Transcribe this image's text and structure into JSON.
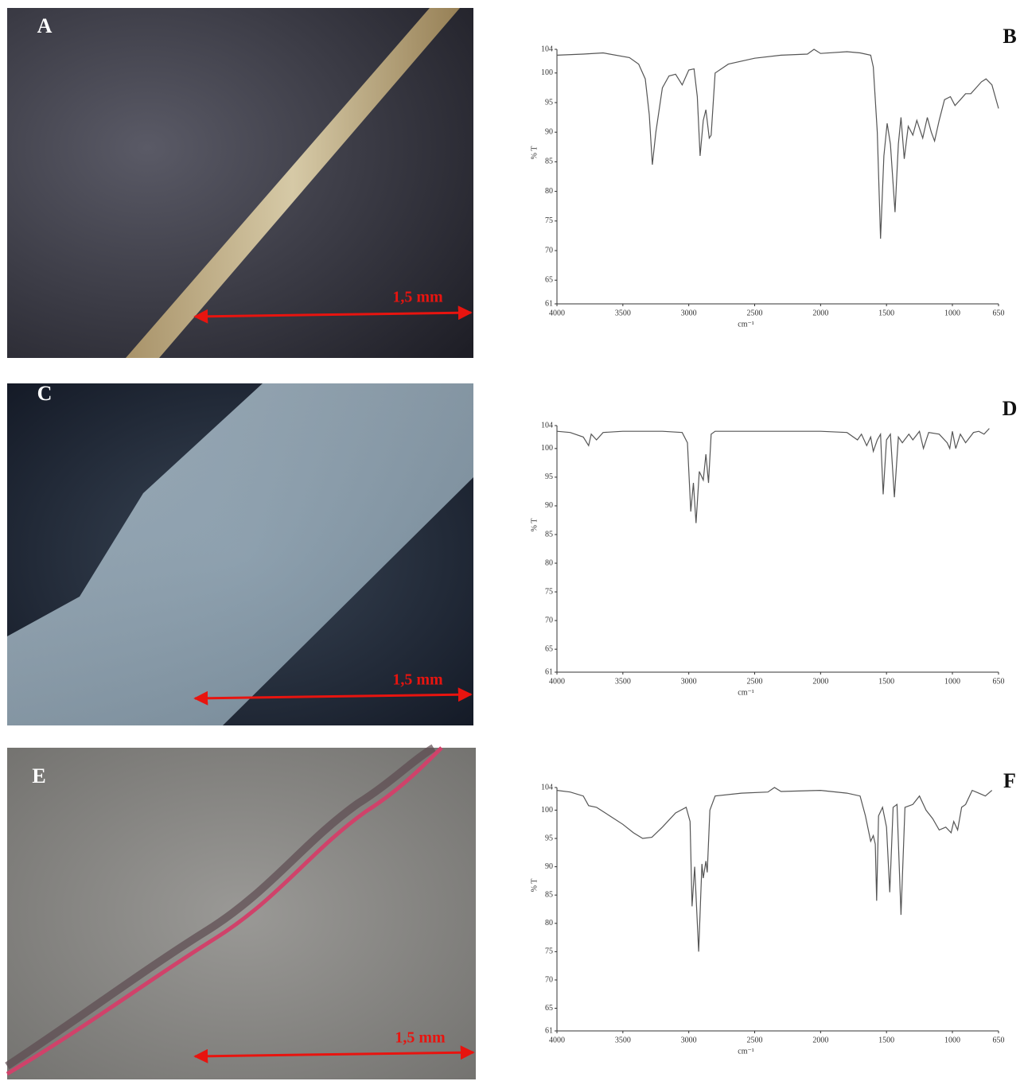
{
  "panels": [
    {
      "label": "A",
      "scale": "1,5 mm"
    },
    {
      "label": "C",
      "scale": "1,5 mm"
    },
    {
      "label": "E",
      "scale": "1,5 mm"
    }
  ],
  "chart_data": [
    {
      "type": "line",
      "title": "B",
      "ylabel": "% T",
      "xlabel": "cm⁻¹",
      "color": "#555555",
      "xlim": [
        4000,
        650
      ],
      "ylim": [
        61,
        104
      ],
      "xticks": [
        4000,
        3500,
        3000,
        2500,
        2000,
        1500,
        1000,
        650
      ],
      "yticks": [
        61,
        65,
        70,
        75,
        80,
        85,
        90,
        95,
        100,
        104
      ],
      "x": [
        4000,
        3800,
        3650,
        3450,
        3380,
        3330,
        3300,
        3276,
        3250,
        3200,
        3150,
        3100,
        3050,
        3000,
        2960,
        2935,
        2914,
        2890,
        2870,
        2845,
        2830,
        2800,
        2700,
        2500,
        2300,
        2100,
        2050,
        2000,
        1800,
        1700,
        1620,
        1600,
        1570,
        1545,
        1520,
        1495,
        1470,
        1435,
        1410,
        1390,
        1365,
        1335,
        1300,
        1270,
        1225,
        1190,
        1160,
        1135,
        1100,
        1060,
        1015,
        980,
        940,
        900,
        860,
        820,
        780,
        745,
        700,
        650
      ],
      "values": [
        103,
        103.2,
        103.4,
        102.6,
        101.5,
        99,
        93,
        84.5,
        90,
        97.5,
        99.5,
        99.8,
        98,
        100.5,
        100.7,
        96,
        86,
        92,
        93.8,
        89,
        89.5,
        100,
        101.5,
        102.5,
        103,
        103.2,
        104,
        103.3,
        103.6,
        103.4,
        103,
        101,
        90,
        72,
        86,
        91.5,
        88,
        76.5,
        88,
        92.5,
        85.5,
        91,
        89.5,
        92,
        89,
        92.5,
        90,
        88.5,
        92,
        95.5,
        96,
        94.5,
        95.5,
        96.5,
        96.5,
        97.5,
        98.5,
        99,
        98,
        94
      ]
    },
    {
      "type": "line",
      "title": "D",
      "ylabel": "% T",
      "xlabel": "cm⁻¹",
      "color": "#555555",
      "xlim": [
        4000,
        650
      ],
      "ylim": [
        61,
        104
      ],
      "xticks": [
        4000,
        3500,
        3000,
        2500,
        2000,
        1500,
        1000,
        650
      ],
      "yticks": [
        61,
        65,
        70,
        75,
        80,
        85,
        90,
        95,
        100,
        104
      ],
      "x": [
        4000,
        3900,
        3800,
        3760,
        3740,
        3700,
        3650,
        3500,
        3200,
        3050,
        3010,
        2985,
        2965,
        2945,
        2920,
        2890,
        2870,
        2850,
        2830,
        2800,
        2500,
        2000,
        1800,
        1720,
        1690,
        1650,
        1620,
        1600,
        1570,
        1545,
        1525,
        1500,
        1470,
        1440,
        1410,
        1380,
        1330,
        1300,
        1250,
        1220,
        1180,
        1100,
        1040,
        1020,
        1000,
        975,
        940,
        900,
        840,
        800,
        760,
        720
      ],
      "values": [
        103,
        102.8,
        102,
        100.5,
        102.5,
        101.5,
        102.8,
        103,
        103,
        102.8,
        101,
        89,
        94,
        87,
        96,
        94.5,
        99,
        94,
        102.5,
        103,
        103,
        103,
        102.8,
        101.5,
        102.5,
        100.5,
        102,
        99.5,
        101.5,
        102.5,
        92,
        101.5,
        102.5,
        91.5,
        102,
        101,
        102.5,
        101.5,
        103,
        100,
        102.8,
        102.5,
        101,
        100,
        103,
        100,
        102.5,
        101,
        102.8,
        103,
        102.5,
        103.5
      ]
    },
    {
      "type": "line",
      "title": "F",
      "ylabel": "% T",
      "xlabel": "cm⁻¹",
      "color": "#555555",
      "xlim": [
        4000,
        650
      ],
      "ylim": [
        61,
        104
      ],
      "xticks": [
        4000,
        3500,
        3000,
        2500,
        2000,
        1500,
        1000,
        650
      ],
      "yticks": [
        61,
        65,
        70,
        75,
        80,
        85,
        90,
        95,
        100,
        104
      ],
      "x": [
        4000,
        3900,
        3800,
        3760,
        3700,
        3600,
        3500,
        3420,
        3350,
        3280,
        3200,
        3100,
        3020,
        2990,
        2975,
        2955,
        2925,
        2900,
        2890,
        2870,
        2860,
        2840,
        2800,
        2600,
        2400,
        2350,
        2300,
        2000,
        1800,
        1700,
        1660,
        1620,
        1600,
        1585,
        1575,
        1560,
        1530,
        1500,
        1475,
        1450,
        1420,
        1390,
        1360,
        1300,
        1250,
        1200,
        1150,
        1100,
        1050,
        1010,
        990,
        960,
        930,
        900,
        850,
        800,
        750,
        700
      ],
      "values": [
        103.5,
        103.2,
        102.5,
        100.8,
        100.5,
        99,
        97.5,
        96,
        95,
        95.2,
        97,
        99.5,
        100.5,
        98,
        83,
        90,
        75,
        90.5,
        88,
        91,
        89,
        100,
        102.5,
        103,
        103.2,
        104,
        103.3,
        103.5,
        103,
        102.5,
        99,
        94.5,
        95.5,
        94,
        84,
        99,
        100.5,
        97,
        85.5,
        100.5,
        101,
        81.5,
        100.5,
        101,
        102.5,
        100,
        98.5,
        96.5,
        97,
        96,
        98,
        96.5,
        100.5,
        101,
        103.5,
        103,
        102.5,
        103.5
      ]
    }
  ]
}
